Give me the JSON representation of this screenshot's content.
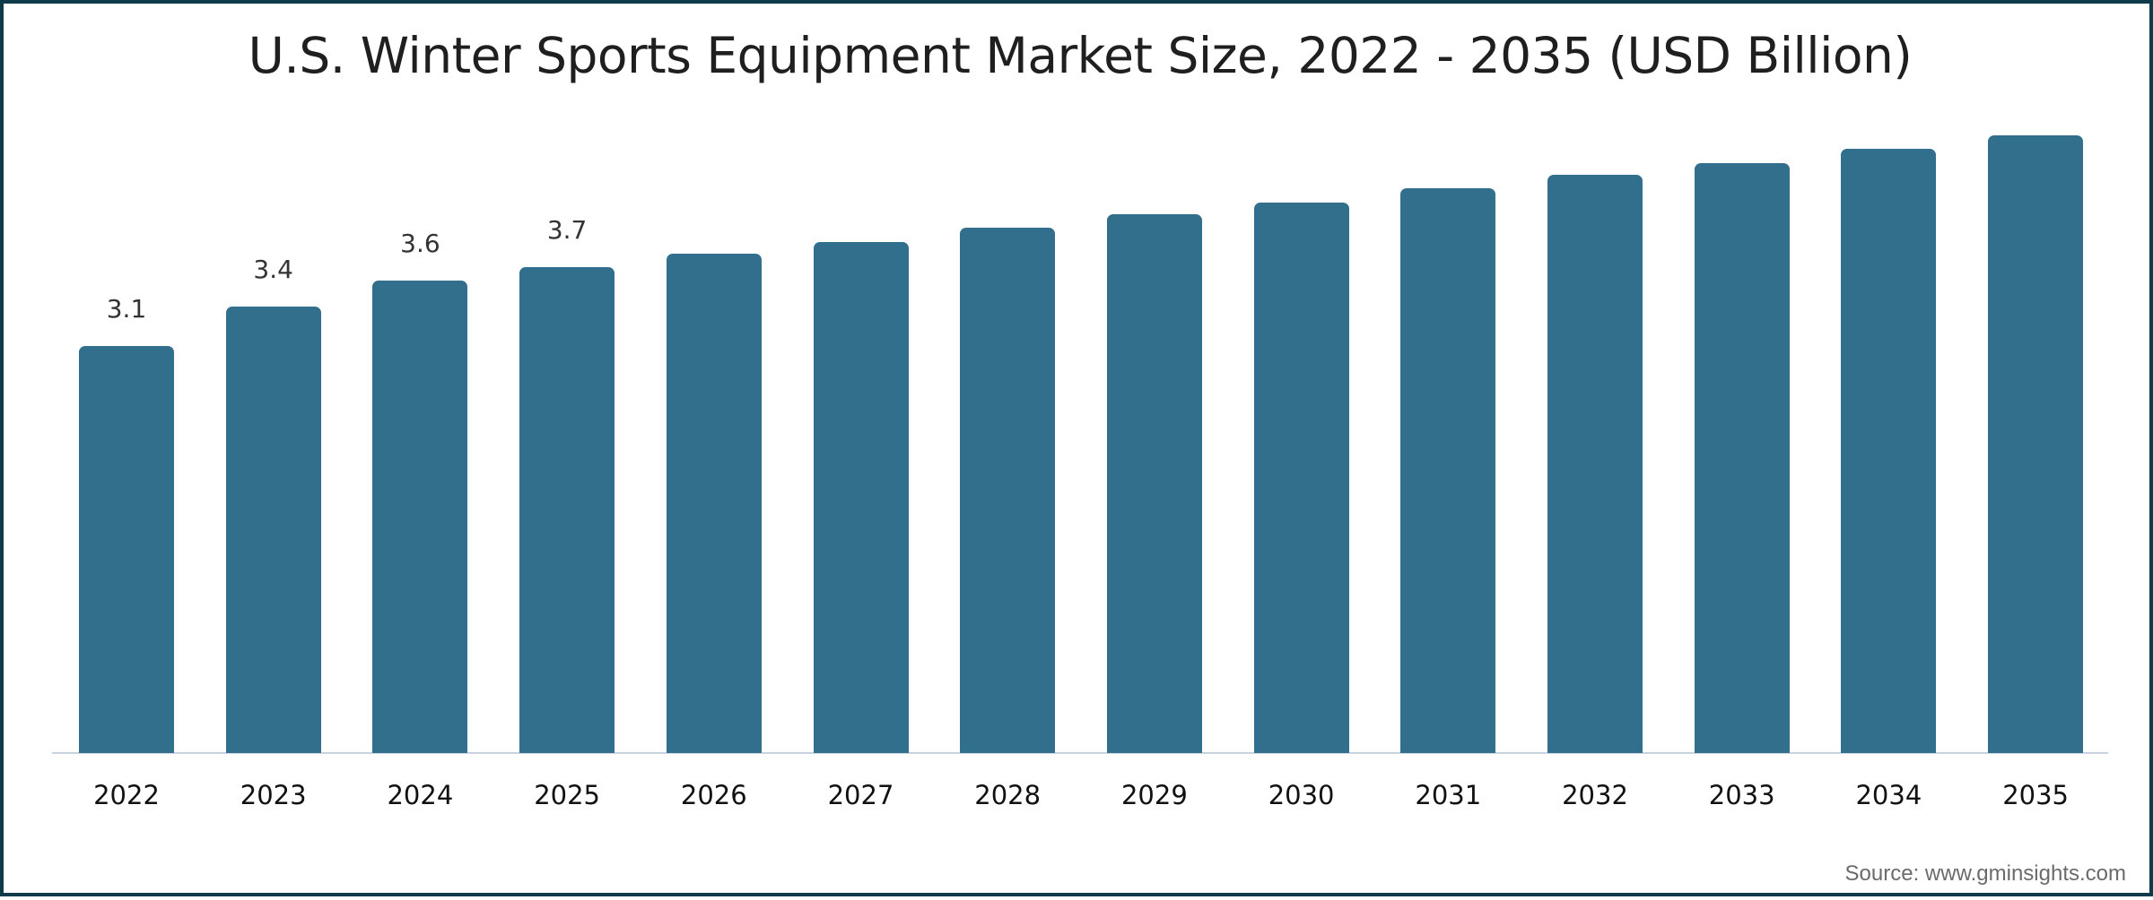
{
  "chart_data": {
    "type": "bar",
    "title": "U.S. Winter Sports Equipment Market Size, 2022 - 2035 (USD Billion)",
    "xlabel": "",
    "ylabel": "",
    "categories": [
      "2022",
      "2023",
      "2024",
      "2025",
      "2026",
      "2027",
      "2028",
      "2029",
      "2030",
      "2031",
      "2032",
      "2033",
      "2034",
      "2035"
    ],
    "values": [
      3.1,
      3.4,
      3.6,
      3.7,
      3.8,
      3.89,
      4.0,
      4.1,
      4.19,
      4.3,
      4.4,
      4.49,
      4.6,
      4.7
    ],
    "data_labels": [
      "3.1",
      "3.4",
      "3.6",
      "3.7",
      "",
      "",
      "",
      "",
      "",
      "",
      "",
      "",
      "",
      ""
    ],
    "ylim": [
      0,
      4.7
    ],
    "grid": false,
    "legend": "none",
    "bar_color": "#316f8d",
    "source": "Source: www.gminsights.com"
  },
  "colors": {
    "bar": "#316f8d",
    "border": "#0e3b4a",
    "axis": "#c8d2e1"
  }
}
